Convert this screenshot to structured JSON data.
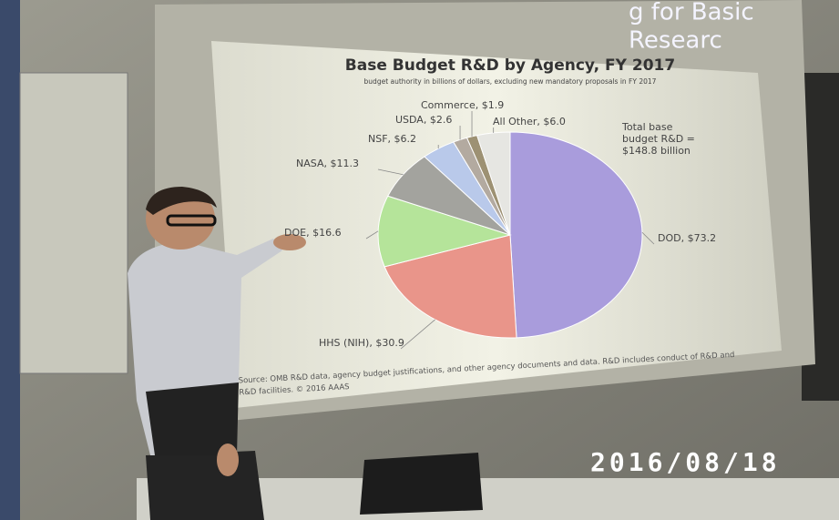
{
  "photo": {
    "slide_heading_lines": [
      "g for Basic",
      "Researc"
    ],
    "timestamp": "2016/08/18"
  },
  "chart_data": {
    "type": "pie",
    "title": "Base Budget R&D by Agency, FY 2017",
    "subtitle": "budget authority in billions of dollars, excluding new mandatory proposals in FY 2017",
    "annotation_lines": [
      "Total base",
      "budget R&D =",
      "$148.8 billion"
    ],
    "source_lines": [
      "Source: OMB R&D data, agency budget justifications, and other agency documents and data. R&D includes conduct of R&D and",
      "R&D facilities. © 2016 AAAS"
    ],
    "values": [
      73.2,
      30.9,
      16.6,
      11.3,
      6.2,
      2.6,
      1.9,
      6.0
    ],
    "value_labels": [
      "DOD, $73.2",
      "HHS (NIH), $30.9",
      "DOE, $16.6",
      "NASA, $11.3",
      "NSF, $6.2",
      "USDA, $2.6",
      "Commerce, $1.9",
      "All Other, $6.0"
    ],
    "colors": [
      "#a99cdc",
      "#e9958a",
      "#b5e49a",
      "#a3a39e",
      "#b9c9ea",
      "#b3aaa0",
      "#9d9173",
      "#e6e6e2"
    ]
  }
}
